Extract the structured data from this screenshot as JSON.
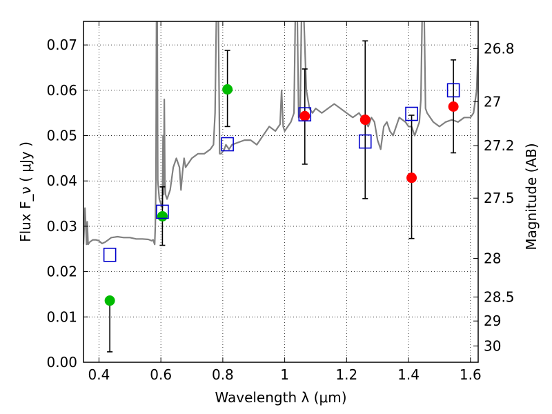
{
  "chart_data": {
    "type": "scatter",
    "xlabel": "Wavelength  λ (μm)",
    "ylabel": "Flux  F_ν  ( μJy )",
    "y2label": "Magnitude (AB)",
    "xlim": [
      0.35,
      1.625
    ],
    "ylim": [
      0.0,
      0.0752
    ],
    "grid": true,
    "x_ticks": [
      0.4,
      0.6,
      0.8,
      1.0,
      1.2,
      1.4,
      1.6
    ],
    "x_tick_labels": [
      "0.4",
      "0.6",
      "0.8",
      "1",
      "1.2",
      "1.4",
      "1.6"
    ],
    "y_ticks": [
      0.0,
      0.01,
      0.02,
      0.03,
      0.04,
      0.05,
      0.06,
      0.07
    ],
    "y_tick_labels": [
      "0.00",
      "0.01",
      "0.02",
      "0.03",
      "0.04",
      "0.05",
      "0.06",
      "0.07"
    ],
    "y2_ticks": [
      {
        "label": "26.8",
        "flux": 0.0692
      },
      {
        "label": "27",
        "flux": 0.0575
      },
      {
        "label": "27.2",
        "flux": 0.0478
      },
      {
        "label": "27.5",
        "flux": 0.0362
      },
      {
        "label": "28",
        "flux": 0.0229
      },
      {
        "label": "28.5",
        "flux": 0.0144
      },
      {
        "label": "29",
        "flux": 0.0091
      },
      {
        "label": "30",
        "flux": 0.0036
      }
    ],
    "series": [
      {
        "marker": "circle-filled",
        "color": "#00bb00",
        "points": [
          {
            "x": 0.435,
            "y": 0.0136,
            "err_low": 0.0113,
            "err_high": 0.0
          },
          {
            "x": 0.605,
            "y": 0.0322,
            "err_low": 0.0064,
            "err_high": 0.0065
          },
          {
            "x": 0.815,
            "y": 0.0602,
            "err_low": 0.0082,
            "err_high": 0.0086
          }
        ]
      },
      {
        "marker": "circle-filled",
        "color": "#ff0000",
        "points": [
          {
            "x": 1.065,
            "y": 0.0543,
            "err_low": 0.0106,
            "err_high": 0.0104
          },
          {
            "x": 1.26,
            "y": 0.0535,
            "err_low": 0.0174,
            "err_high": 0.0174
          },
          {
            "x": 1.41,
            "y": 0.0407,
            "err_low": 0.0134,
            "err_high": 0.0138
          },
          {
            "x": 1.545,
            "y": 0.0564,
            "err_low": 0.0102,
            "err_high": 0.0103
          }
        ]
      },
      {
        "marker": "square-open",
        "color": "#0000cc",
        "points": [
          {
            "x": 0.435,
            "y": 0.0237
          },
          {
            "x": 0.605,
            "y": 0.0332
          },
          {
            "x": 0.815,
            "y": 0.0481
          },
          {
            "x": 1.065,
            "y": 0.0547
          },
          {
            "x": 1.26,
            "y": 0.0487
          },
          {
            "x": 1.41,
            "y": 0.0548
          },
          {
            "x": 1.545,
            "y": 0.06
          }
        ]
      }
    ],
    "model_spectrum": {
      "color": "#808080",
      "x": [
        0.35,
        0.355,
        0.36,
        0.362,
        0.365,
        0.37,
        0.38,
        0.39,
        0.4,
        0.41,
        0.42,
        0.43,
        0.44,
        0.45,
        0.46,
        0.47,
        0.48,
        0.5,
        0.52,
        0.54,
        0.56,
        0.57,
        0.575,
        0.58,
        0.582,
        0.584,
        0.586,
        0.588,
        0.59,
        0.595,
        0.6,
        0.605,
        0.607,
        0.609,
        0.611,
        0.613,
        0.615,
        0.62,
        0.63,
        0.64,
        0.65,
        0.66,
        0.665,
        0.67,
        0.675,
        0.68,
        0.69,
        0.7,
        0.72,
        0.74,
        0.76,
        0.77,
        0.775,
        0.78,
        0.785,
        0.79,
        0.795,
        0.8,
        0.805,
        0.81,
        0.82,
        0.83,
        0.85,
        0.87,
        0.89,
        0.91,
        0.93,
        0.95,
        0.97,
        0.985,
        0.99,
        0.995,
        1.0,
        1.01,
        1.02,
        1.03,
        1.035,
        1.04,
        1.045,
        1.05,
        1.055,
        1.06,
        1.07,
        1.08,
        1.09,
        1.1,
        1.12,
        1.14,
        1.16,
        1.18,
        1.2,
        1.22,
        1.24,
        1.25,
        1.26,
        1.27,
        1.28,
        1.29,
        1.3,
        1.31,
        1.32,
        1.33,
        1.34,
        1.35,
        1.37,
        1.39,
        1.4,
        1.41,
        1.42,
        1.43,
        1.435,
        1.44,
        1.445,
        1.45,
        1.455,
        1.46,
        1.48,
        1.5,
        1.52,
        1.54,
        1.56,
        1.58,
        1.6,
        1.61,
        1.62,
        1.625
      ],
      "y": [
        0.026,
        0.034,
        0.026,
        0.031,
        0.026,
        0.0265,
        0.027,
        0.027,
        0.0268,
        0.0262,
        0.0265,
        0.027,
        0.0275,
        0.0276,
        0.0277,
        0.0276,
        0.0275,
        0.0275,
        0.0272,
        0.0272,
        0.0271,
        0.0268,
        0.027,
        0.026,
        0.03,
        0.04,
        0.08,
        0.08,
        0.04,
        0.036,
        0.035,
        0.034,
        0.05,
        0.037,
        0.058,
        0.04,
        0.037,
        0.036,
        0.038,
        0.043,
        0.045,
        0.043,
        0.038,
        0.042,
        0.045,
        0.043,
        0.044,
        0.045,
        0.046,
        0.046,
        0.047,
        0.048,
        0.055,
        0.08,
        0.08,
        0.046,
        0.046,
        0.0465,
        0.047,
        0.048,
        0.047,
        0.048,
        0.0485,
        0.049,
        0.049,
        0.048,
        0.05,
        0.052,
        0.051,
        0.0525,
        0.06,
        0.052,
        0.051,
        0.052,
        0.053,
        0.055,
        0.08,
        0.08,
        0.054,
        0.055,
        0.08,
        0.08,
        0.06,
        0.056,
        0.055,
        0.056,
        0.055,
        0.056,
        0.057,
        0.056,
        0.055,
        0.054,
        0.055,
        0.054,
        0.053,
        0.052,
        0.054,
        0.053,
        0.049,
        0.047,
        0.052,
        0.053,
        0.051,
        0.05,
        0.054,
        0.053,
        0.052,
        0.052,
        0.05,
        0.052,
        0.053,
        0.058,
        0.08,
        0.08,
        0.056,
        0.055,
        0.053,
        0.052,
        0.053,
        0.0535,
        0.053,
        0.054,
        0.054,
        0.055,
        0.06,
        0.07
      ]
    }
  }
}
